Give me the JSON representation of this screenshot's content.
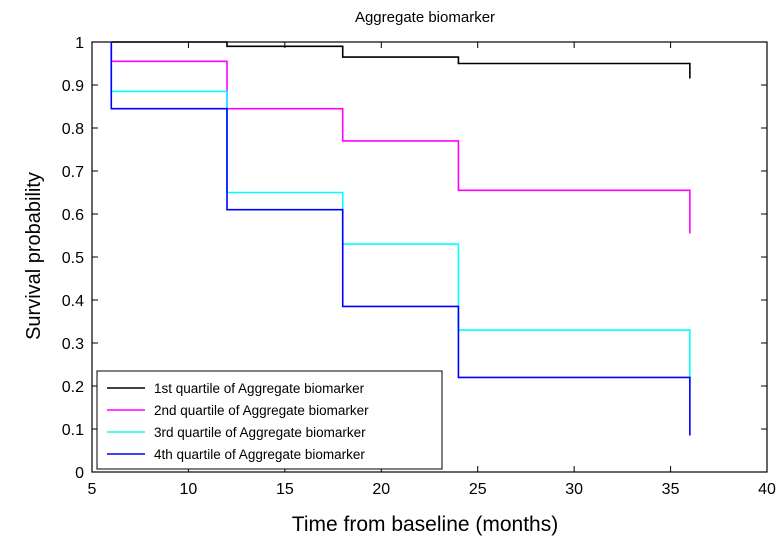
{
  "chart_data": {
    "type": "line",
    "title": "Aggregate biomarker",
    "xlabel": "Time from baseline (months)",
    "ylabel": "Survival probability",
    "xlim": [
      5,
      40
    ],
    "ylim": [
      0,
      1
    ],
    "xticks": [
      5,
      10,
      15,
      20,
      25,
      30,
      35,
      40
    ],
    "yticks": [
      0,
      0.1,
      0.2,
      0.3,
      0.4,
      0.5,
      0.6,
      0.7,
      0.8,
      0.9,
      1
    ],
    "grid": false,
    "legend_position": "bottom-left",
    "series": [
      {
        "name": "1st quartile of Aggregate biomarker",
        "color": "#000000",
        "steps": [
          [
            6,
            1.0
          ],
          [
            12,
            0.99
          ],
          [
            18,
            0.965
          ],
          [
            24,
            0.95
          ],
          [
            36,
            0.915
          ]
        ]
      },
      {
        "name": "2nd quartile of Aggregate biomarker",
        "color": "#ff00ff",
        "steps": [
          [
            6,
            0.955
          ],
          [
            12,
            0.845
          ],
          [
            18,
            0.77
          ],
          [
            24,
            0.655
          ],
          [
            36,
            0.555
          ]
        ]
      },
      {
        "name": "3rd quartile of Aggregate biomarker",
        "color": "#00ffff",
        "steps": [
          [
            6,
            0.885
          ],
          [
            12,
            0.65
          ],
          [
            18,
            0.53
          ],
          [
            24,
            0.33
          ],
          [
            36,
            0.2
          ]
        ]
      },
      {
        "name": "4th quartile of Aggregate biomarker",
        "color": "#0000ff",
        "steps": [
          [
            6,
            0.845
          ],
          [
            12,
            0.61
          ],
          [
            18,
            0.385
          ],
          [
            24,
            0.22
          ],
          [
            36,
            0.085
          ]
        ]
      }
    ]
  }
}
